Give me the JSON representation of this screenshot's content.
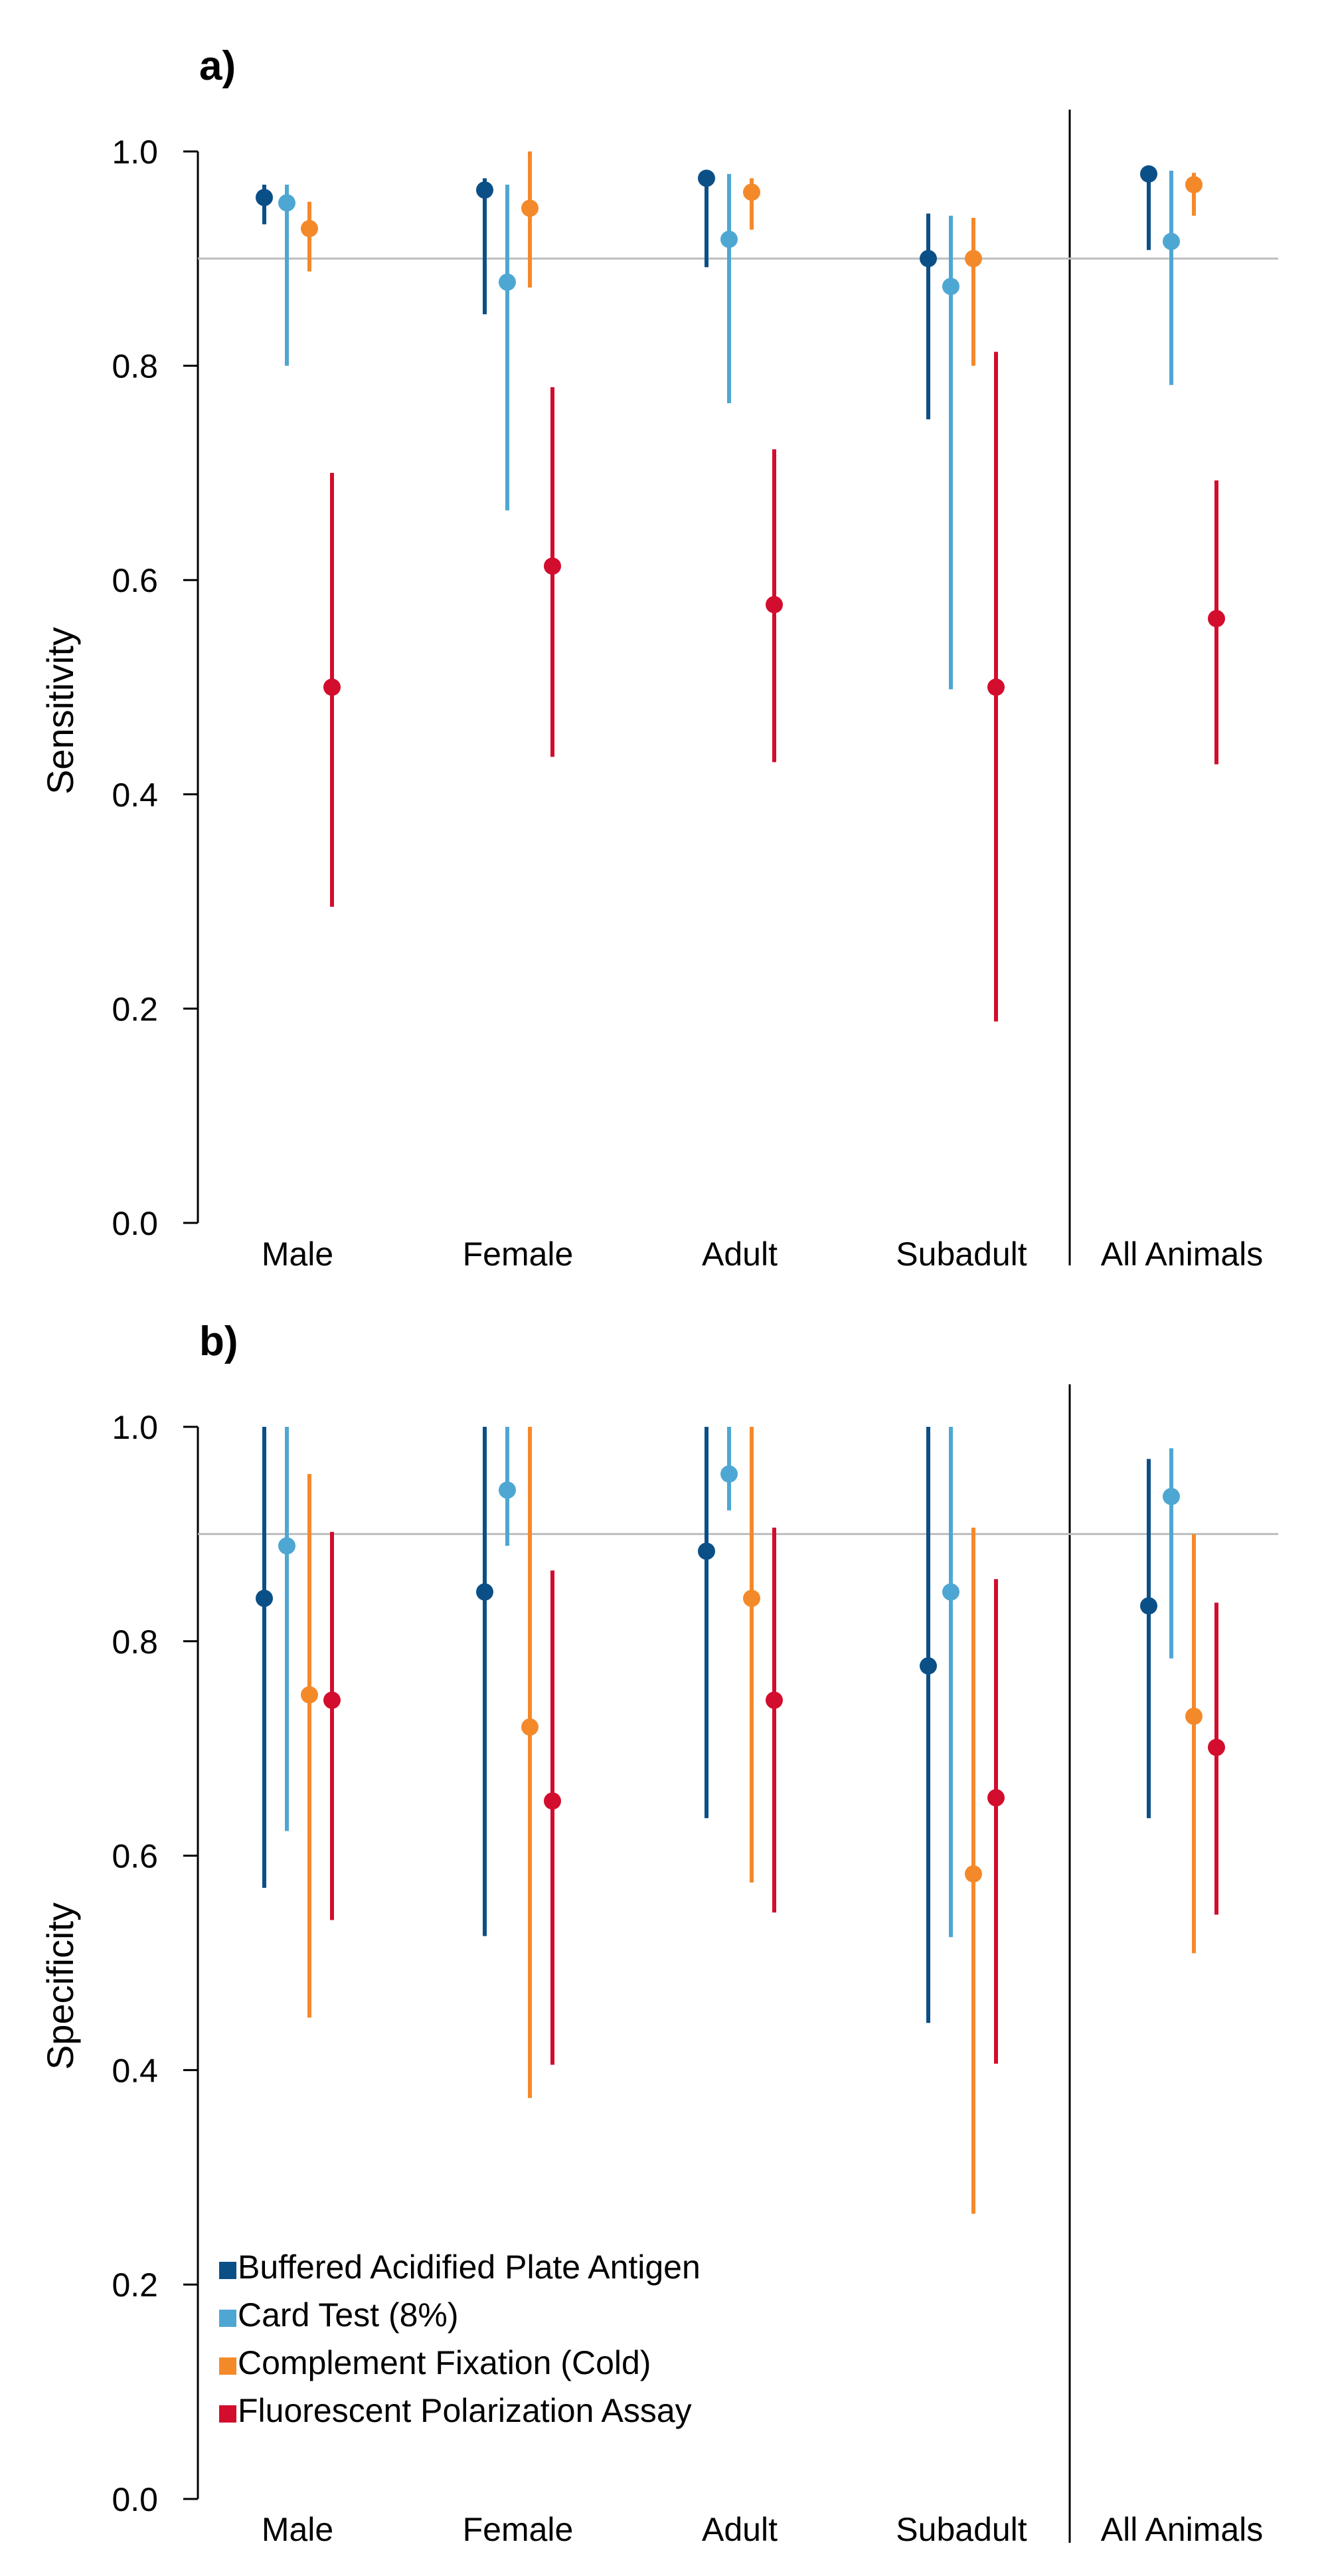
{
  "chart_data": [
    {
      "type": "errorbar",
      "panel_label": "a)",
      "ylabel": "Sensitivity",
      "ylim": [
        0,
        1
      ],
      "yticks": [
        "0.0",
        "0.2",
        "0.4",
        "0.6",
        "0.8",
        "1.0"
      ],
      "reference_line": 0.9,
      "categories": [
        "Male",
        "Female",
        "Adult",
        "Subadult",
        "All Animals"
      ],
      "series": [
        {
          "name": "Buffered Acidified Plate Antigen",
          "color": "#0b4f87",
          "values": [
            0.957,
            0.964,
            0.975,
            0.9,
            0.979
          ],
          "lower": [
            0.932,
            0.848,
            0.892,
            0.75,
            0.908
          ],
          "upper": [
            0.969,
            0.975,
            0.98,
            0.942,
            0.984
          ]
        },
        {
          "name": "Card Test (8%)",
          "color": "#4ea7d3",
          "values": [
            0.952,
            0.878,
            0.918,
            0.874,
            0.916
          ],
          "lower": [
            0.8,
            0.665,
            0.765,
            0.498,
            0.782
          ],
          "upper": [
            0.969,
            0.969,
            0.979,
            0.94,
            0.982
          ]
        },
        {
          "name": "Complement Fixation (Cold)",
          "color": "#f4892a",
          "values": [
            0.928,
            0.947,
            0.962,
            0.9,
            0.969
          ],
          "lower": [
            0.888,
            0.873,
            0.927,
            0.8,
            0.94
          ],
          "upper": [
            0.953,
            1.0,
            0.975,
            0.938,
            0.98
          ]
        },
        {
          "name": "Fluorescent Polarization Assay",
          "color": "#d30d2d",
          "values": [
            0.5,
            0.613,
            0.577,
            0.5,
            0.564
          ],
          "lower": [
            0.295,
            0.435,
            0.43,
            0.188,
            0.428
          ],
          "upper": [
            0.7,
            0.78,
            0.722,
            0.813,
            0.693
          ]
        }
      ]
    },
    {
      "type": "errorbar",
      "panel_label": "b)",
      "ylabel": "Specificity",
      "ylim": [
        0,
        1
      ],
      "yticks": [
        "0.0",
        "0.2",
        "0.4",
        "0.6",
        "0.8",
        "1.0"
      ],
      "reference_line": 0.9,
      "categories": [
        "Male",
        "Female",
        "Adult",
        "Subadult",
        "All Animals"
      ],
      "series": [
        {
          "name": "Buffered Acidified Plate Antigen",
          "color": "#0b4f87",
          "values": [
            0.84,
            0.846,
            0.884,
            0.777,
            0.833
          ],
          "lower": [
            0.57,
            0.525,
            0.635,
            0.444,
            0.635
          ],
          "upper": [
            1.0,
            1.0,
            1.0,
            1.0,
            0.97
          ]
        },
        {
          "name": "Card Test (8%)",
          "color": "#4ea7d3",
          "values": [
            0.889,
            0.941,
            0.956,
            0.846,
            0.935
          ],
          "lower": [
            0.623,
            0.889,
            0.922,
            0.524,
            0.784
          ],
          "upper": [
            1.0,
            1.0,
            1.0,
            1.0,
            0.98
          ]
        },
        {
          "name": "Complement Fixation (Cold)",
          "color": "#f4892a",
          "values": [
            0.75,
            0.72,
            0.84,
            0.583,
            0.73
          ],
          "lower": [
            0.449,
            0.374,
            0.575,
            0.266,
            0.509
          ],
          "upper": [
            0.956,
            1.0,
            1.0,
            0.906,
            0.9
          ]
        },
        {
          "name": "Fluorescent Polarization Assay",
          "color": "#d30d2d",
          "values": [
            0.745,
            0.651,
            0.745,
            0.654,
            0.701
          ],
          "lower": [
            0.54,
            0.405,
            0.547,
            0.406,
            0.545
          ],
          "upper": [
            0.902,
            0.866,
            0.906,
            0.858,
            0.836
          ]
        }
      ],
      "legend": {
        "position": "bottom-left",
        "entries": [
          "Buffered Acidified Plate Antigen",
          "Card Test (8%)",
          "Complement Fixation (Cold)",
          "Fluorescent Polarization Assay"
        ]
      }
    }
  ]
}
